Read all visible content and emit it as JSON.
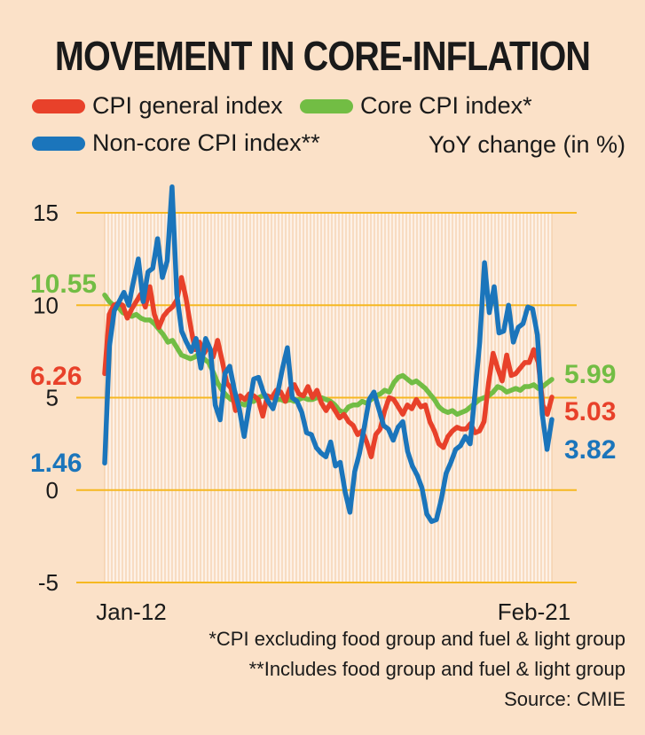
{
  "header": {
    "title": "MOVEMENT IN CORE-INFLATION"
  },
  "legend": {
    "general": "CPI general index",
    "core": "Core CPI index*",
    "noncore": "Non-core CPI index**"
  },
  "unit_label": "YoY change (in %)",
  "footnotes": {
    "note1": "*CPI excluding food group and fuel & light group",
    "note2": "**Includes food group and fuel & light group",
    "source": "Source: CMIE"
  },
  "colors": {
    "general": "#e8412a",
    "core": "#72bd44",
    "noncore": "#1b75bb",
    "grid": "#f6b821"
  },
  "chart_data": {
    "type": "line",
    "title": "MOVEMENT IN CORE-INFLATION",
    "ylabel": "YoY change (in %)",
    "ylim": [
      -5,
      15
    ],
    "yticks": [
      "15",
      "10",
      "5",
      "0",
      "-5"
    ],
    "x_start": "Jan-12",
    "x_end": "Feb-21",
    "x_labels": [
      "Jan-12",
      "Feb-21"
    ],
    "series": [
      {
        "key": "general",
        "name": "CPI general index",
        "start_label": "6.26",
        "end_label": "5.03",
        "values": [
          6.3,
          9.5,
          10.0,
          10.1,
          10.0,
          9.3,
          9.8,
          10.2,
          10.6,
          9.9,
          11.0,
          9.5,
          8.8,
          9.4,
          9.7,
          9.9,
          10.3,
          11.5,
          10.4,
          8.9,
          7.6,
          8.0,
          7.4,
          7.8,
          7.2,
          8.1,
          7.0,
          5.8,
          5.5,
          4.3,
          5.1,
          4.9,
          5.2,
          5.1,
          4.9,
          4.0,
          5.1,
          5.0,
          5.4,
          5.3,
          4.8,
          5.5,
          5.7,
          5.2,
          5.1,
          5.6,
          5.0,
          5.4,
          4.7,
          4.3,
          4.7,
          4.3,
          3.9,
          4.1,
          3.7,
          3.5,
          3.0,
          3.2,
          2.6,
          1.8,
          3.0,
          3.3,
          4.3,
          5.0,
          4.9,
          4.5,
          4.1,
          4.6,
          4.4,
          4.9,
          4.5,
          4.6,
          3.7,
          3.2,
          2.5,
          2.3,
          2.9,
          3.2,
          3.4,
          3.3,
          3.3,
          3.6,
          3.1,
          3.2,
          3.7,
          5.8,
          7.4,
          6.6,
          5.9,
          7.3,
          6.2,
          6.3,
          6.6,
          6.9,
          6.9,
          7.6,
          6.9,
          4.6,
          4.1,
          5.03
        ]
      },
      {
        "key": "core",
        "name": "Core CPI index*",
        "start_label": "10.55",
        "end_label": "5.99",
        "values": [
          10.55,
          10.2,
          10.0,
          9.9,
          9.6,
          9.5,
          9.4,
          9.5,
          9.3,
          9.2,
          9.2,
          9.0,
          8.7,
          8.4,
          8.0,
          8.1,
          7.7,
          7.3,
          7.2,
          7.1,
          7.2,
          7.4,
          7.1,
          6.9,
          6.4,
          5.8,
          5.4,
          5.1,
          4.9,
          4.8,
          4.7,
          4.6,
          4.8,
          4.8,
          5.0,
          5.1,
          5.0,
          5.0,
          4.9,
          4.9,
          4.8,
          4.9,
          4.8,
          4.9,
          5.0,
          4.9,
          4.9,
          5.0,
          5.0,
          4.9,
          4.8,
          4.6,
          4.3,
          4.2,
          4.5,
          4.6,
          4.6,
          4.8,
          4.7,
          4.9,
          5.1,
          5.2,
          5.4,
          5.3,
          5.8,
          6.1,
          6.2,
          6.0,
          5.8,
          5.9,
          5.7,
          5.5,
          5.2,
          4.9,
          4.5,
          4.3,
          4.2,
          4.3,
          4.1,
          4.2,
          4.3,
          4.5,
          4.7,
          4.9,
          5.0,
          5.1,
          5.3,
          5.6,
          5.5,
          5.3,
          5.4,
          5.5,
          5.4,
          5.6,
          5.6,
          5.7,
          5.5,
          5.6,
          5.8,
          5.99
        ]
      },
      {
        "key": "noncore",
        "name": "Non-core CPI index**",
        "start_label": "1.46",
        "end_label": "3.82",
        "values": [
          1.46,
          7.8,
          9.7,
          10.2,
          10.7,
          10.0,
          11.3,
          12.5,
          10.2,
          11.8,
          12.0,
          13.6,
          11.5,
          12.4,
          16.4,
          10.6,
          8.6,
          8.0,
          7.5,
          8.2,
          6.6,
          8.2,
          7.6,
          4.6,
          3.8,
          6.3,
          6.7,
          5.4,
          4.4,
          2.9,
          4.5,
          6.0,
          6.1,
          5.3,
          4.8,
          4.4,
          5.3,
          6.6,
          7.7,
          5.0,
          4.8,
          4.2,
          3.1,
          3.0,
          2.3,
          2.0,
          1.8,
          2.6,
          1.3,
          1.5,
          -0.1,
          -1.2,
          1.0,
          2.0,
          3.4,
          4.9,
          5.3,
          4.4,
          3.5,
          3.3,
          2.7,
          3.4,
          3.7,
          2.1,
          1.3,
          0.8,
          0.1,
          -1.3,
          -1.7,
          -1.6,
          -0.5,
          0.9,
          1.5,
          2.2,
          2.4,
          2.9,
          2.5,
          5.2,
          8.0,
          12.3,
          9.6,
          11.0,
          8.5,
          8.6,
          10.0,
          8.0,
          8.8,
          9.0,
          9.9,
          9.8,
          8.4,
          4.1,
          2.2,
          3.82
        ]
      }
    ]
  }
}
